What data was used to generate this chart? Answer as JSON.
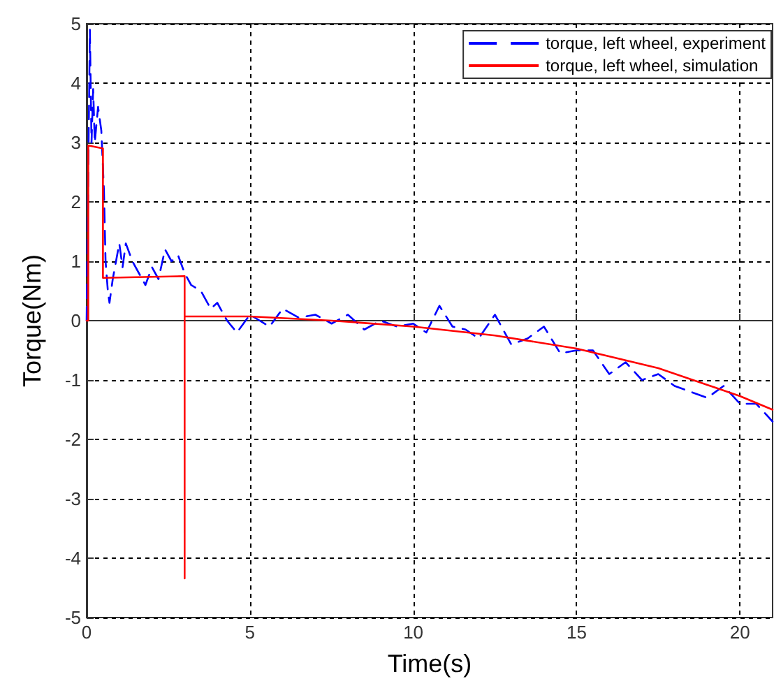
{
  "chart_data": {
    "type": "line",
    "xlabel": "Time(s)",
    "ylabel": "Torque(Nm)",
    "xlim": [
      0,
      21
    ],
    "xticks": [
      0,
      5,
      10,
      15,
      20
    ],
    "ylim": [
      -5,
      5
    ],
    "yticks": [
      -5,
      -4,
      -3,
      -2,
      -1,
      0,
      1,
      2,
      3,
      4,
      5
    ],
    "grid": true,
    "legend": "top right",
    "marker": "none",
    "series": [
      {
        "name": "torque, left wheel, experiment",
        "color": "#0000ff",
        "line_style": "dashed",
        "x": [
          0,
          0.05,
          0.1,
          0.15,
          0.2,
          0.25,
          0.35,
          0.45,
          0.53,
          0.58,
          0.65,
          0.7,
          0.8,
          0.9,
          1.0,
          1.1,
          1.2,
          1.4,
          1.6,
          1.8,
          2.0,
          2.2,
          2.4,
          2.6,
          2.8,
          3.0,
          3.2,
          3.5,
          3.8,
          4.0,
          4.3,
          4.6,
          5.0,
          5.3,
          5.6,
          6.0,
          6.5,
          7.0,
          7.5,
          8.0,
          8.5,
          9.0,
          9.5,
          10,
          10.4,
          10.8,
          11.2,
          11.6,
          12.0,
          12.5,
          13.0,
          13.5,
          14.0,
          14.5,
          15.0,
          15.5,
          16.0,
          16.5,
          17.0,
          17.5,
          18.0,
          18.5,
          19.0,
          19.5,
          20.0,
          20.5,
          21
        ],
        "values": [
          0,
          2.5,
          4.9,
          3.0,
          3.9,
          3.0,
          3.6,
          3.2,
          2.2,
          1.0,
          0.5,
          0.3,
          0.7,
          1.0,
          1.3,
          0.9,
          1.3,
          1.0,
          0.8,
          0.6,
          0.9,
          0.7,
          1.2,
          1.0,
          1.1,
          0.8,
          0.6,
          0.5,
          0.2,
          0.3,
          0.0,
          -0.2,
          0.1,
          0.0,
          -0.1,
          0.2,
          0.05,
          0.1,
          -0.05,
          0.1,
          -0.15,
          0.0,
          -0.1,
          -0.05,
          -0.2,
          0.25,
          -0.1,
          -0.15,
          -0.3,
          0.1,
          -0.4,
          -0.3,
          -0.1,
          -0.55,
          -0.5,
          -0.5,
          -0.9,
          -0.7,
          -1.0,
          -0.9,
          -1.1,
          -1.2,
          -1.3,
          -1.1,
          -1.4,
          -1.4,
          -1.7
        ]
      },
      {
        "name": "torque, left wheel, simulation",
        "color": "#ff0000",
        "line_style": "solid",
        "x": [
          0,
          0.05,
          0.05,
          0.5,
          0.5,
          3.0,
          3.0,
          3.0,
          5,
          7.5,
          10,
          12.5,
          15,
          17.5,
          20,
          21
        ],
        "values": [
          0,
          0,
          2.95,
          2.9,
          0.72,
          0.75,
          -4.34,
          0.07,
          0.07,
          0.0,
          -0.1,
          -0.25,
          -0.47,
          -0.8,
          -1.27,
          -1.5
        ]
      }
    ]
  }
}
